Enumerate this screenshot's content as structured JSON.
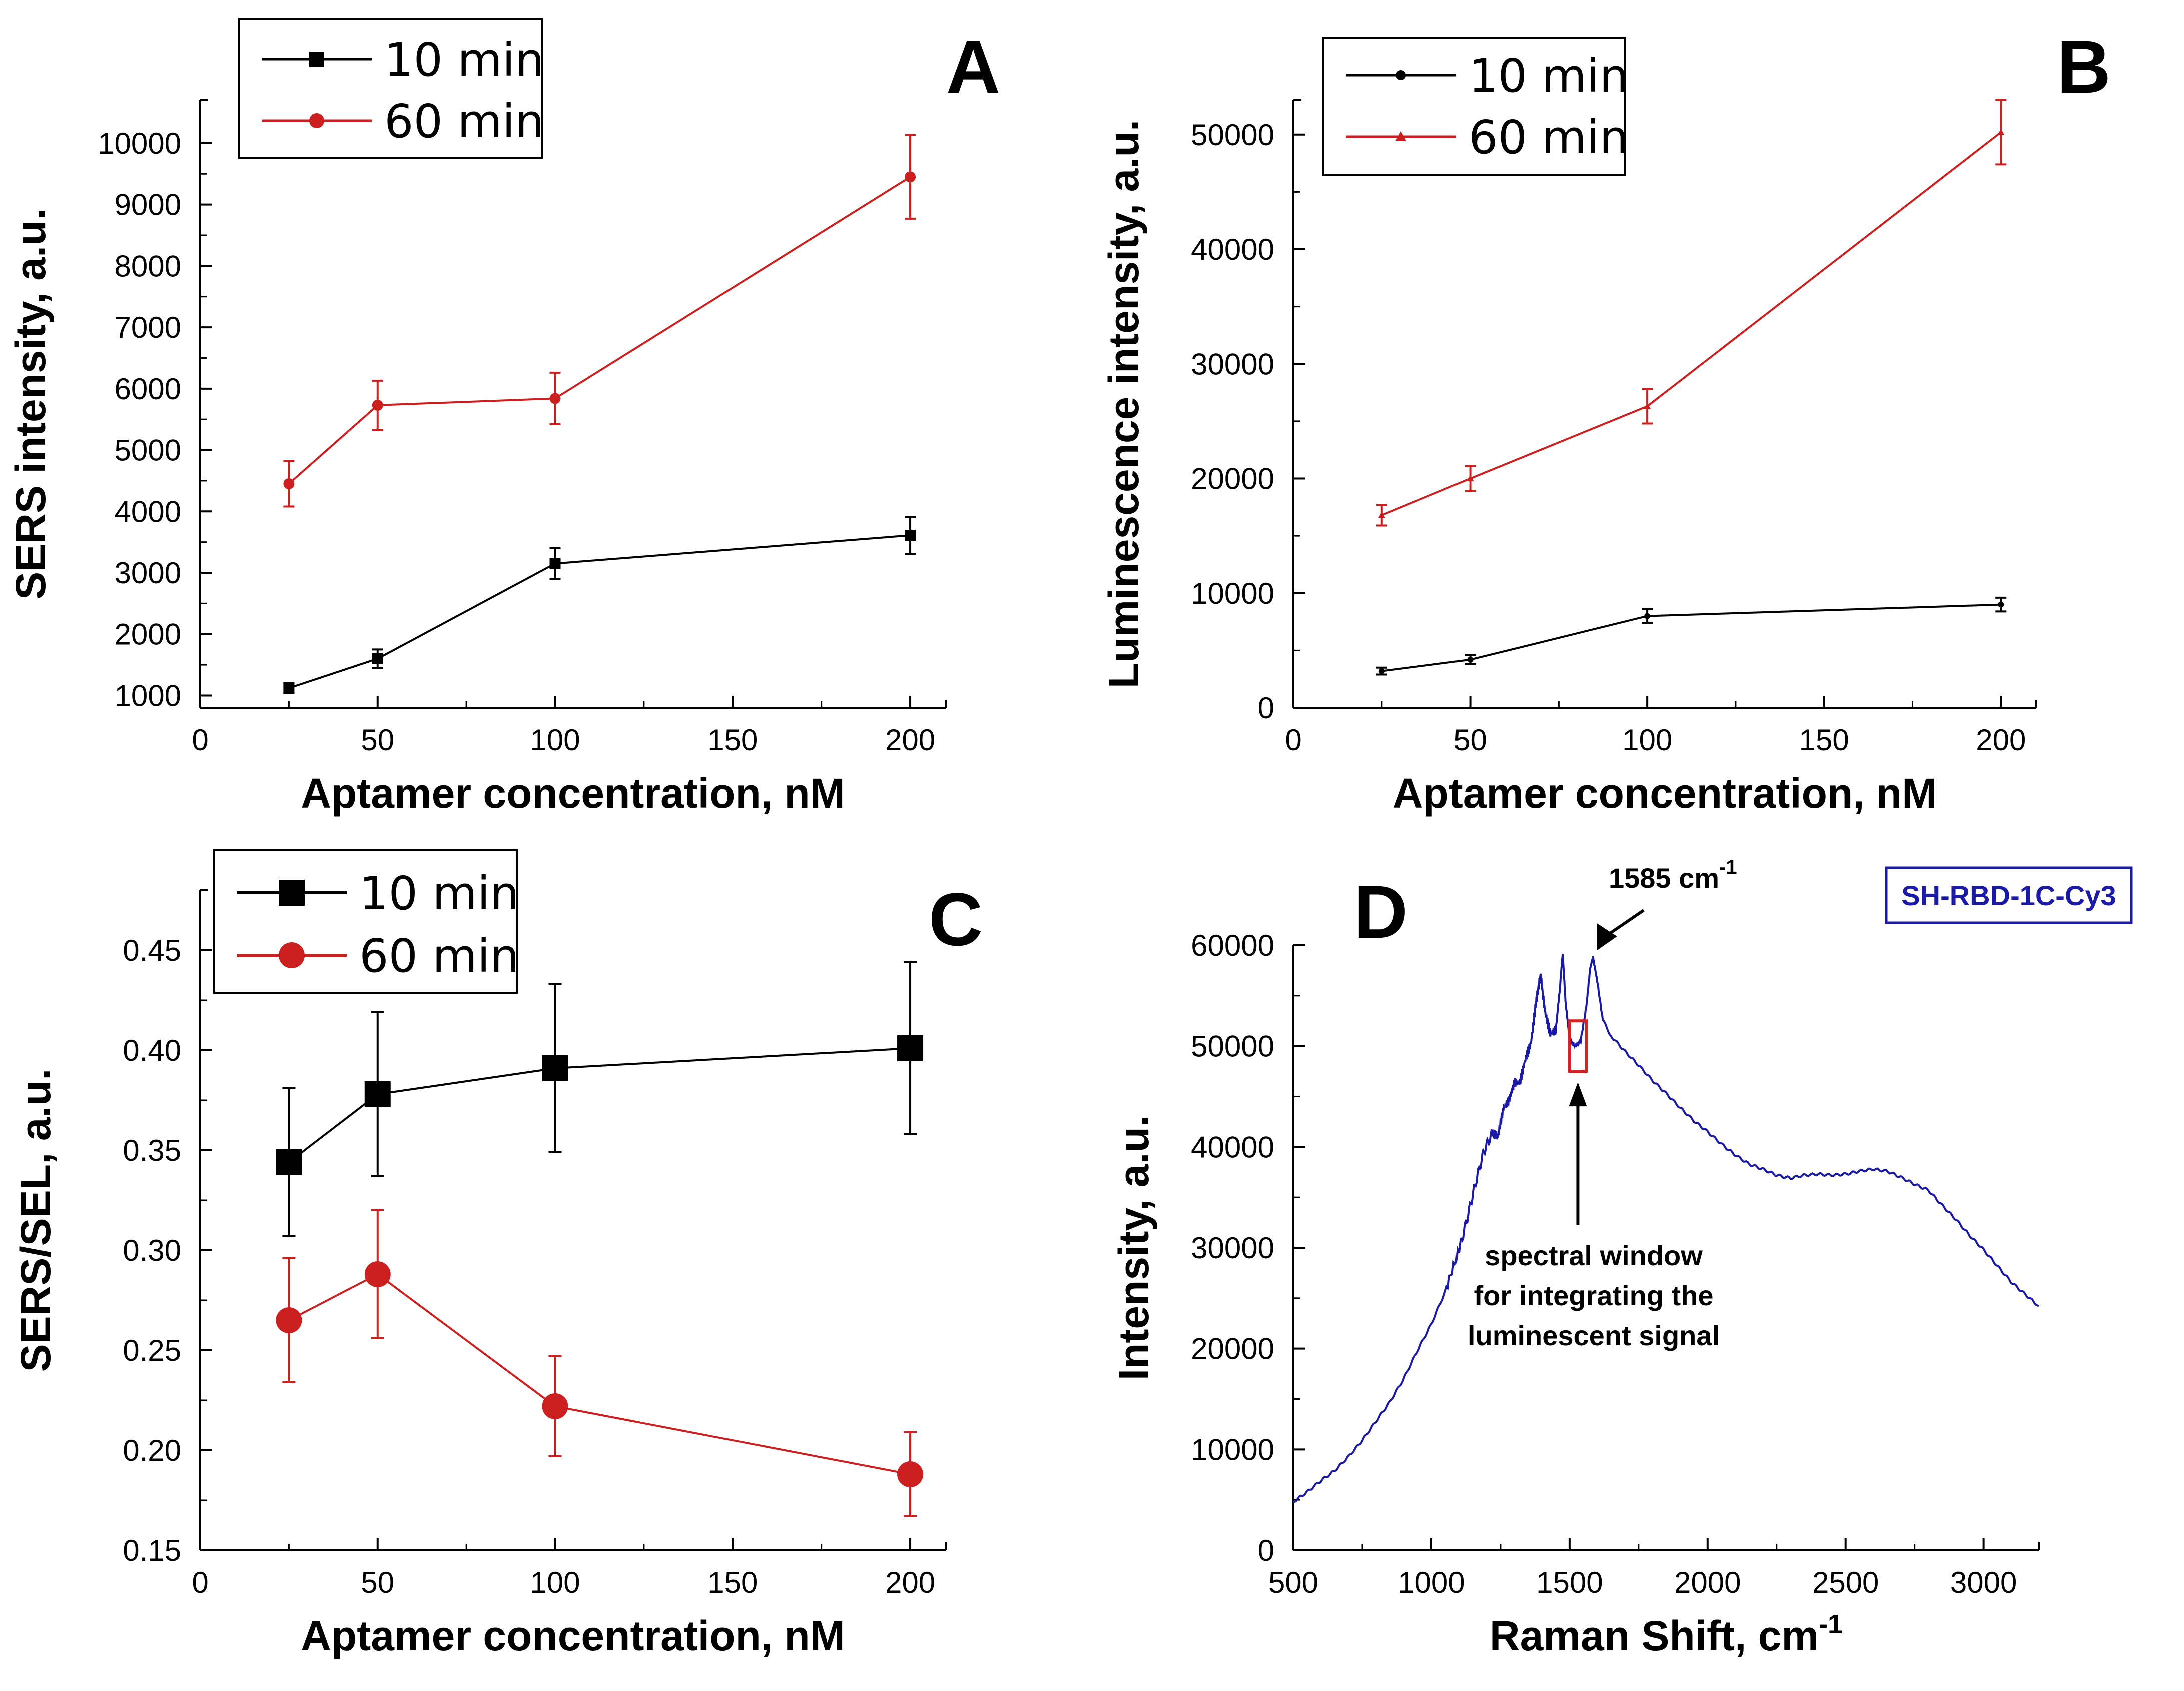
{
  "chart_data": [
    {
      "id": "A",
      "panel_label": "A",
      "type": "line",
      "xlabel": "Aptamer concentration, nM",
      "ylabel": "SERS intensity, a.u.",
      "xlim": [
        0,
        210
      ],
      "ylim": [
        800,
        10700
      ],
      "x_ticks": [
        0,
        50,
        100,
        150,
        200
      ],
      "y_ticks": [
        1000,
        2000,
        3000,
        4000,
        5000,
        6000,
        7000,
        8000,
        9000,
        10000
      ],
      "legend_position": "top-left",
      "series": [
        {
          "name": "10 min",
          "color": "#000000",
          "marker": "square",
          "marker_size": 11,
          "x": [
            25,
            50,
            100,
            200
          ],
          "y": [
            1120,
            1600,
            3150,
            3610
          ],
          "err": [
            80,
            150,
            250,
            300
          ]
        },
        {
          "name": "60 min",
          "color": "#cc1f1f",
          "marker": "circle",
          "marker_size": 11,
          "x": [
            25,
            50,
            100,
            200
          ],
          "y": [
            4450,
            5730,
            5840,
            9450
          ],
          "err": [
            370,
            400,
            420,
            680
          ]
        }
      ]
    },
    {
      "id": "B",
      "panel_label": "B",
      "type": "line",
      "xlabel": "Aptamer concentration, nM",
      "ylabel": "Luminescence intensity, a.u.",
      "xlim": [
        0,
        210
      ],
      "ylim": [
        0,
        53000
      ],
      "x_ticks": [
        0,
        50,
        100,
        150,
        200
      ],
      "y_ticks": [
        0,
        10000,
        20000,
        30000,
        40000,
        50000
      ],
      "legend_position": "top-left",
      "series": [
        {
          "name": "10 min",
          "color": "#000000",
          "marker": "circle",
          "marker_size": 6,
          "x": [
            25,
            50,
            100,
            200
          ],
          "y": [
            3200,
            4200,
            8000,
            9000
          ],
          "err": [
            300,
            400,
            600,
            600
          ]
        },
        {
          "name": "60 min",
          "color": "#cc1f1f",
          "marker": "triangle",
          "marker_size": 7,
          "x": [
            25,
            50,
            100,
            200
          ],
          "y": [
            16800,
            20000,
            26300,
            50200
          ],
          "err": [
            900,
            1100,
            1500,
            2800
          ]
        }
      ]
    },
    {
      "id": "C",
      "panel_label": "C",
      "type": "line",
      "xlabel": "Aptamer concentration, nM",
      "ylabel": "SERS/SEL, a.u.",
      "xlim": [
        0,
        210
      ],
      "ylim": [
        0.15,
        0.48
      ],
      "x_ticks": [
        0,
        50,
        100,
        150,
        200
      ],
      "y_ticks": [
        0.15,
        0.2,
        0.25,
        0.3,
        0.35,
        0.4,
        0.45
      ],
      "legend_position": "top-left",
      "series": [
        {
          "name": "10 min",
          "color": "#000000",
          "marker": "square",
          "marker_size": 26,
          "x": [
            25,
            50,
            100,
            200
          ],
          "y": [
            0.344,
            0.378,
            0.391,
            0.401
          ],
          "err": [
            0.037,
            0.041,
            0.042,
            0.043
          ]
        },
        {
          "name": "60 min",
          "color": "#cc1f1f",
          "marker": "circle",
          "marker_size": 26,
          "x": [
            25,
            50,
            100,
            200
          ],
          "y": [
            0.265,
            0.288,
            0.222,
            0.188
          ],
          "err": [
            0.031,
            0.032,
            0.025,
            0.021
          ]
        }
      ]
    },
    {
      "id": "D",
      "panel_label": "D",
      "type": "line",
      "xlabel": "Raman Shift, cm",
      "xlabel_superscript": "-1",
      "ylabel": "Intensity, a.u.",
      "xlim": [
        500,
        3200
      ],
      "ylim": [
        0,
        60000
      ],
      "x_ticks": [
        500,
        1000,
        1500,
        2000,
        2500,
        3000
      ],
      "y_ticks": [
        0,
        10000,
        20000,
        30000,
        40000,
        50000,
        60000
      ],
      "series_name": "SH-RBD-1C-Cy3",
      "color": "#1a1aa6",
      "spectrum": [
        [
          500,
          4800
        ],
        [
          550,
          5800
        ],
        [
          600,
          6900
        ],
        [
          650,
          7900
        ],
        [
          700,
          9300
        ],
        [
          750,
          10900
        ],
        [
          800,
          12800
        ],
        [
          850,
          14700
        ],
        [
          900,
          17000
        ],
        [
          950,
          19800
        ],
        [
          1000,
          22400
        ],
        [
          1050,
          25600
        ],
        [
          1100,
          29800
        ],
        [
          1130,
          33000
        ],
        [
          1160,
          36500
        ],
        [
          1190,
          39600
        ],
        [
          1220,
          41400
        ],
        [
          1240,
          41000
        ],
        [
          1260,
          43800
        ],
        [
          1280,
          44600
        ],
        [
          1300,
          46400
        ],
        [
          1320,
          46400
        ],
        [
          1340,
          48700
        ],
        [
          1360,
          50300
        ],
        [
          1380,
          54600
        ],
        [
          1395,
          57000
        ],
        [
          1410,
          53500
        ],
        [
          1430,
          51200
        ],
        [
          1450,
          51600
        ],
        [
          1465,
          55800
        ],
        [
          1475,
          59200
        ],
        [
          1485,
          54500
        ],
        [
          1500,
          50600
        ],
        [
          1520,
          50000
        ],
        [
          1540,
          50500
        ],
        [
          1560,
          53800
        ],
        [
          1575,
          57800
        ],
        [
          1585,
          58800
        ],
        [
          1600,
          56500
        ],
        [
          1620,
          52600
        ],
        [
          1650,
          51000
        ],
        [
          1700,
          49500
        ],
        [
          1750,
          48100
        ],
        [
          1800,
          46600
        ],
        [
          1850,
          45300
        ],
        [
          1900,
          43900
        ],
        [
          1950,
          42600
        ],
        [
          2000,
          41500
        ],
        [
          2050,
          40300
        ],
        [
          2100,
          39200
        ],
        [
          2150,
          38300
        ],
        [
          2200,
          37800
        ],
        [
          2250,
          37200
        ],
        [
          2300,
          36900
        ],
        [
          2350,
          37200
        ],
        [
          2400,
          37300
        ],
        [
          2450,
          37200
        ],
        [
          2500,
          37300
        ],
        [
          2550,
          37600
        ],
        [
          2600,
          37800
        ],
        [
          2650,
          37600
        ],
        [
          2700,
          37000
        ],
        [
          2750,
          36300
        ],
        [
          2800,
          35700
        ],
        [
          2850,
          34200
        ],
        [
          2900,
          32800
        ],
        [
          2950,
          31200
        ],
        [
          3000,
          29800
        ],
        [
          3050,
          28200
        ],
        [
          3100,
          26600
        ],
        [
          3150,
          25400
        ],
        [
          3200,
          24200
        ]
      ],
      "window": {
        "x_from": 1500,
        "x_to": 1560,
        "y_from": 47500,
        "y_to": 52500,
        "color": "#d42020"
      },
      "peak_annotation": {
        "text": "1585 cm",
        "superscript": "-1",
        "x": 1585,
        "y": 58800
      },
      "window_annotation": {
        "lines": [
          "spectral window",
          "for integrating the",
          "luminescent signal"
        ]
      }
    }
  ]
}
